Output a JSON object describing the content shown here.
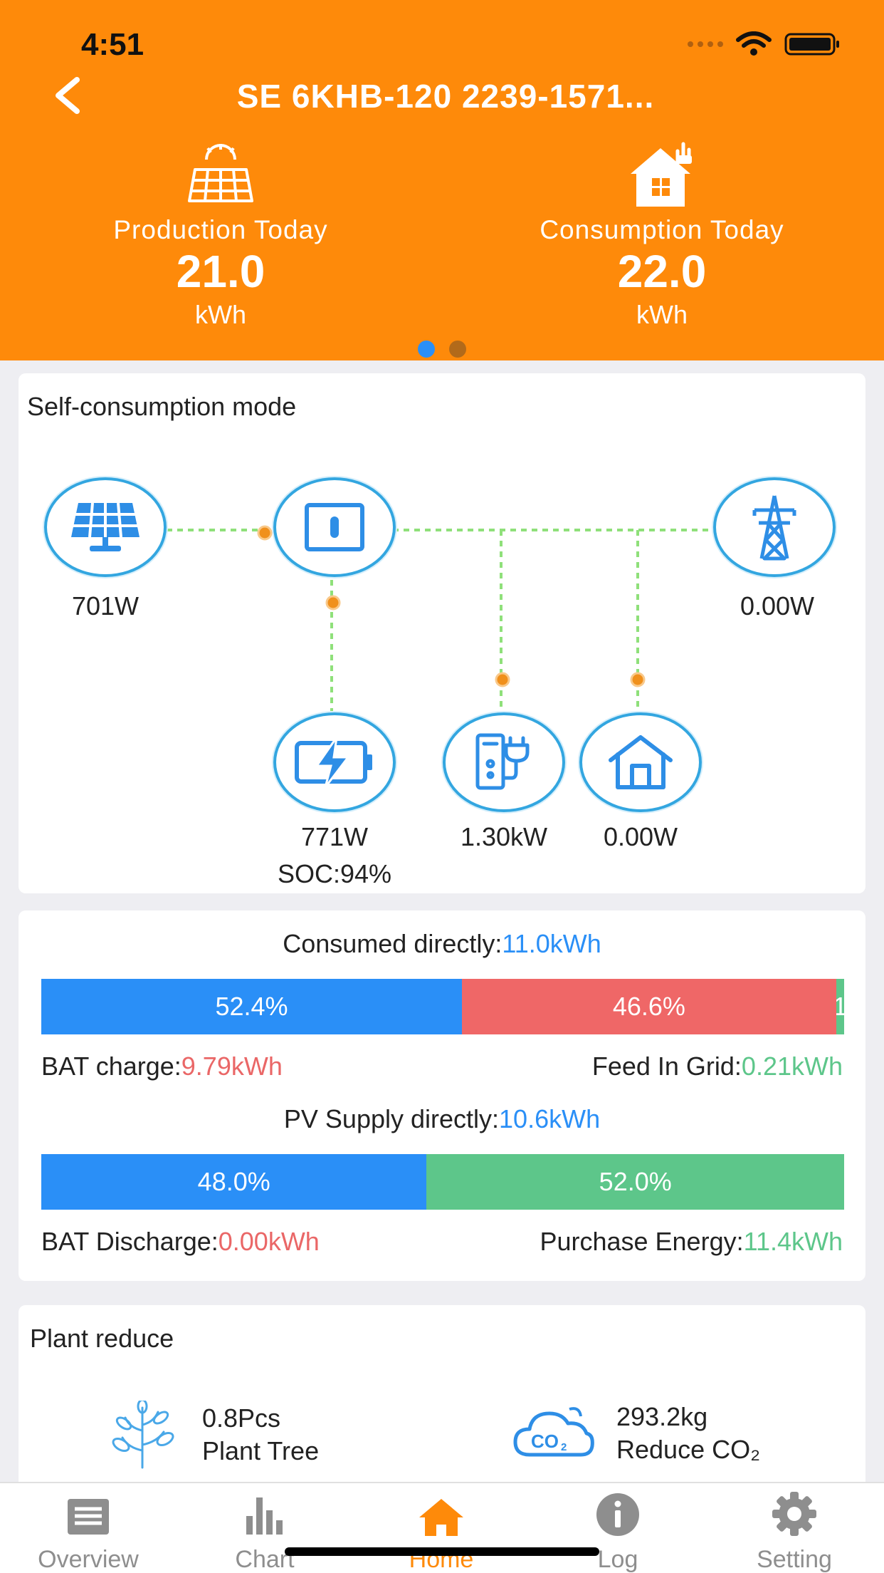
{
  "status_bar": {
    "time": "4:51"
  },
  "header": {
    "title": "SE 6KHB-120 2239-1571...",
    "production": {
      "label": "Production Today",
      "value": "21.0",
      "unit": "kWh",
      "icon": "solar-panel-sun-icon"
    },
    "consumption": {
      "label": "Consumption Today",
      "value": "22.0",
      "unit": "kWh",
      "icon": "house-plug-icon"
    },
    "page_indicator": {
      "count": 2,
      "active": 0
    },
    "colors": {
      "background": "#fe8a0a",
      "dot_active": "#2a8ff7",
      "dot_inactive": "#b26a1a"
    }
  },
  "flow": {
    "title": "Self-consumption mode",
    "pv": {
      "value": "701W",
      "icon": "solar-panel-icon"
    },
    "inverter": {
      "icon": "inverter-icon"
    },
    "grid": {
      "value": "0.00W",
      "icon": "power-tower-icon"
    },
    "battery": {
      "value": "771W",
      "soc": "SOC:94%",
      "icon": "battery-charging-icon"
    },
    "ev_charger": {
      "value": "1.30kW",
      "icon": "ev-charger-icon"
    },
    "home": {
      "value": "0.00W",
      "icon": "home-icon"
    },
    "colors": {
      "line": "#8fe07a",
      "dot": "#f0901c",
      "node_border": "#33a6e0",
      "icon": "#2e8ee6"
    }
  },
  "energy": {
    "consumed": {
      "label": "Consumed directly:",
      "value": "11.0kWh"
    },
    "consumed_bar": [
      {
        "label": "52.4%",
        "percent": 52.4,
        "color": "#2a8ff7"
      },
      {
        "label": "46.6%",
        "percent": 46.6,
        "color": "#ef6767"
      },
      {
        "label": "1",
        "percent": 1.0,
        "color": "#5dc68a"
      }
    ],
    "bat_charge": {
      "label": "BAT charge:",
      "value": "9.79kWh"
    },
    "feed_in": {
      "label": "Feed In Grid:",
      "value": "0.21kWh"
    },
    "pv_supply": {
      "label": "PV Supply directly:",
      "value": "10.6kWh"
    },
    "pv_bar": [
      {
        "label": "48.0%",
        "percent": 48.0,
        "color": "#2a8ff7"
      },
      {
        "label": "52.0%",
        "percent": 52.0,
        "color": "#5dc68a"
      }
    ],
    "bat_discharge": {
      "label": "BAT Discharge:",
      "value": "0.00kWh"
    },
    "purchase": {
      "label": "Purchase Energy:",
      "value": "11.4kWh"
    }
  },
  "plant_reduce": {
    "title": "Plant reduce",
    "tree": {
      "value": "0.8Pcs",
      "label": "Plant Tree",
      "icon": "tree-icon"
    },
    "co2": {
      "value": "293.2kg",
      "label": "Reduce CO₂",
      "icon": "co2-cloud-icon"
    }
  },
  "tabbar": {
    "tabs": [
      {
        "label": "Overview",
        "icon": "overview-icon"
      },
      {
        "label": "Chart",
        "icon": "bar-chart-icon"
      },
      {
        "label": "Home",
        "icon": "home-tab-icon"
      },
      {
        "label": "Log",
        "icon": "info-icon"
      },
      {
        "label": "Setting",
        "icon": "gear-icon"
      }
    ],
    "active": "Home",
    "colors": {
      "active": "#fe8a0a",
      "inactive": "#8e8e8e"
    }
  }
}
